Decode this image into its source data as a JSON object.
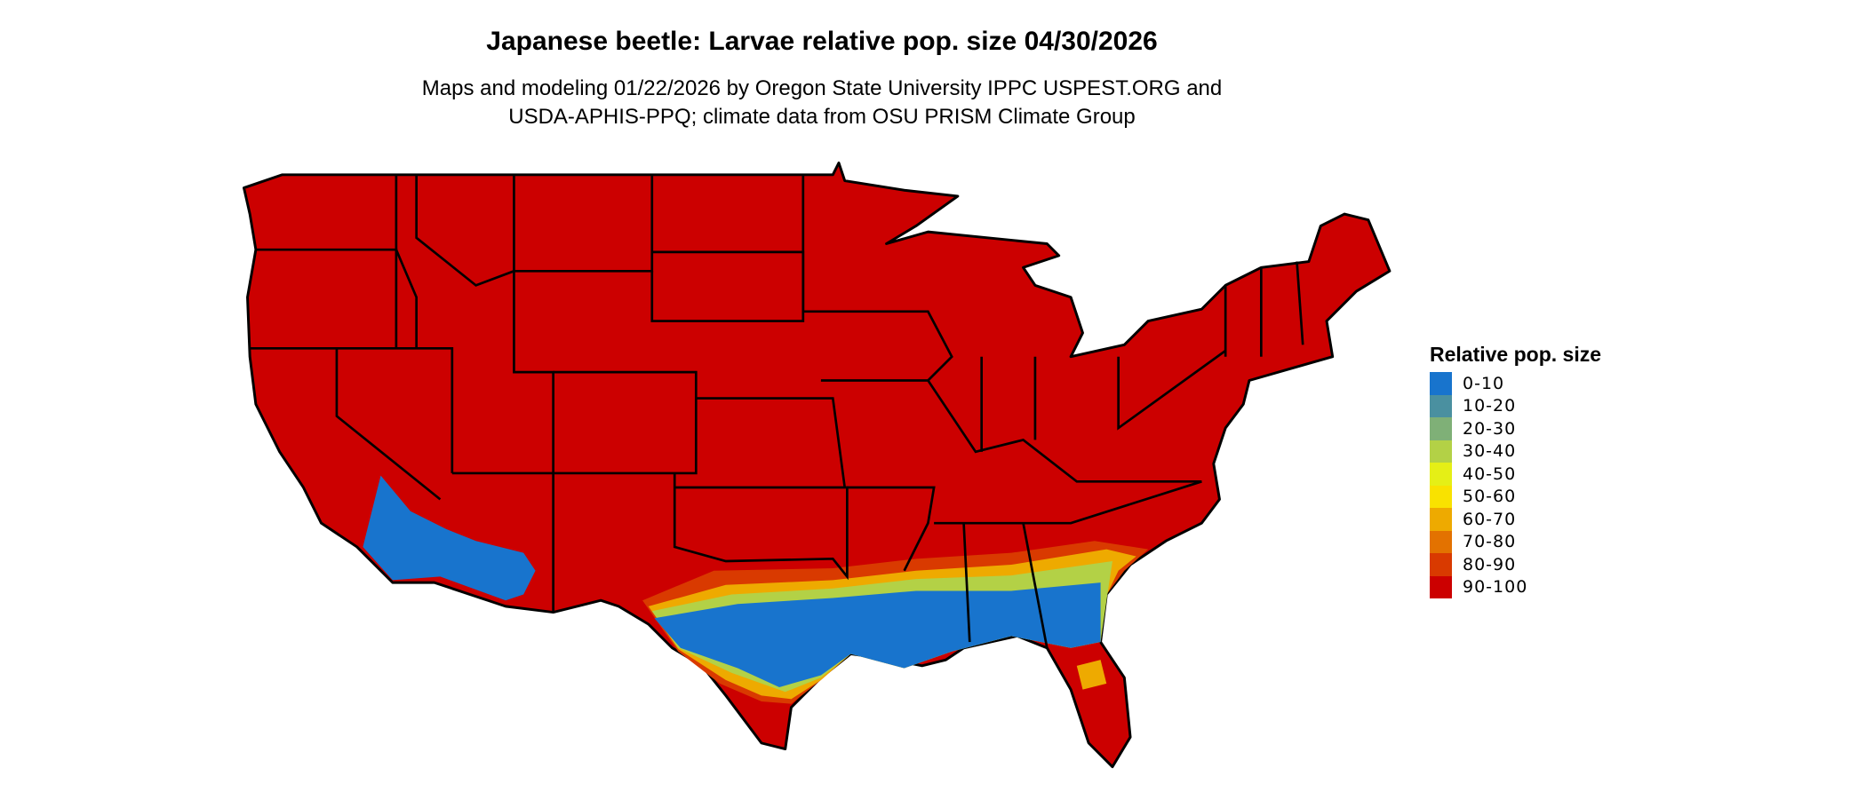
{
  "title": "Japanese beetle: Larvae relative pop. size 04/30/2026",
  "subtitle_line1": "Maps and modeling 01/22/2026 by Oregon State University IPPC USPEST.ORG and",
  "subtitle_line2": "USDA-APHIS-PPQ; climate data from OSU PRISM Climate Group",
  "legend": {
    "title": "Relative pop. size",
    "items": [
      {
        "label": "0-10",
        "color": "#1874cd"
      },
      {
        "label": "10-20",
        "color": "#4a90a0"
      },
      {
        "label": "20-30",
        "color": "#7fb077"
      },
      {
        "label": "30-40",
        "color": "#b3d146"
      },
      {
        "label": "40-50",
        "color": "#e5ef16"
      },
      {
        "label": "50-60",
        "color": "#f9e200"
      },
      {
        "label": "60-70",
        "color": "#eeaa00"
      },
      {
        "label": "70-80",
        "color": "#e37200"
      },
      {
        "label": "80-90",
        "color": "#d93a00"
      },
      {
        "label": "90-100",
        "color": "#cc0000"
      }
    ]
  }
}
